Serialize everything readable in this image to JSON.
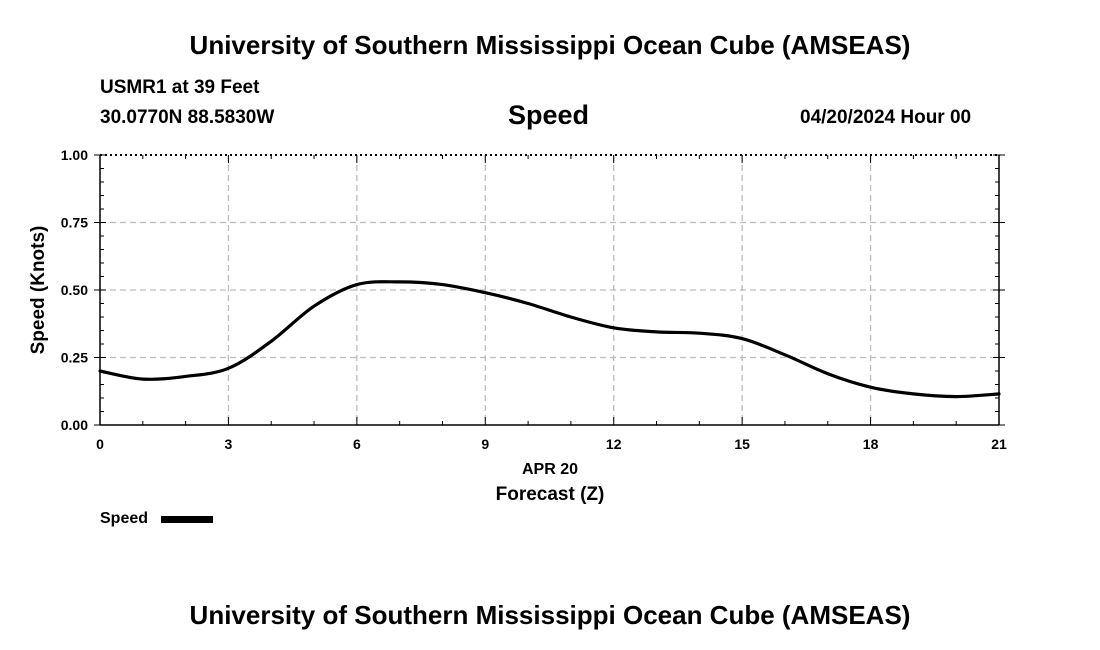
{
  "header": {
    "title": "University of Southern Mississippi Ocean Cube (AMSEAS)",
    "station": "USMR1 at 39 Feet",
    "coords": "30.0770N  88.5830W",
    "datetime": "04/20/2024 Hour 00"
  },
  "footer": {
    "title": "University of Southern Mississippi Ocean Cube (AMSEAS)"
  },
  "legend": {
    "label": "Speed"
  },
  "chart_data": {
    "type": "line",
    "title": "Speed",
    "xlabel": "Forecast (Z)",
    "x_date_label": "APR 20",
    "ylabel": "Speed (Knots)",
    "xlim": [
      0,
      21
    ],
    "ylim": [
      0,
      1
    ],
    "x_ticks": [
      0,
      3,
      6,
      9,
      12,
      15,
      18,
      21
    ],
    "x_tick_labels": [
      "0",
      "3",
      "6",
      "9",
      "12",
      "15",
      "18",
      "21"
    ],
    "y_ticks": [
      0,
      0.25,
      0.5,
      0.75,
      1.0
    ],
    "y_tick_labels": [
      "0.00",
      "0.25",
      "0.50",
      "0.75",
      "1.00"
    ],
    "grid": true,
    "legend_position": "bottom-left",
    "series": [
      {
        "name": "Speed",
        "color": "#000000",
        "x": [
          0,
          1,
          2,
          3,
          4,
          5,
          6,
          7,
          8,
          9,
          10,
          11,
          12,
          13,
          14,
          15,
          16,
          17,
          18,
          19,
          20,
          21
        ],
        "values": [
          0.2,
          0.17,
          0.18,
          0.21,
          0.31,
          0.44,
          0.52,
          0.53,
          0.52,
          0.49,
          0.45,
          0.4,
          0.36,
          0.345,
          0.34,
          0.32,
          0.26,
          0.19,
          0.14,
          0.115,
          0.105,
          0.115
        ]
      }
    ]
  }
}
